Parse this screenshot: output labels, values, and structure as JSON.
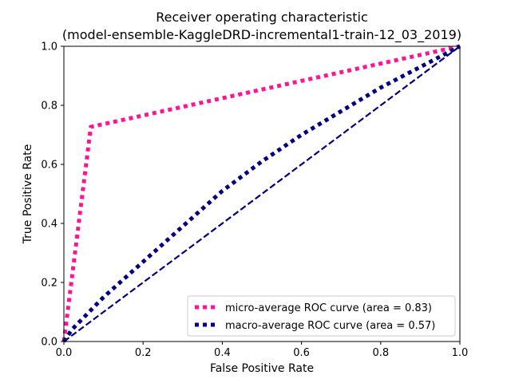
{
  "chart_data": {
    "type": "line",
    "title_line1": "Receiver operating characteristic",
    "title_line2": "(model-ensemble-KaggleDRD-incremental1-train-12_03_2019)",
    "xlabel": "False Positive Rate",
    "ylabel": "True Positive Rate",
    "xlim": [
      0.0,
      1.0
    ],
    "ylim": [
      0.0,
      1.0
    ],
    "xticks": [
      "0.0",
      "0.2",
      "0.4",
      "0.6",
      "0.8",
      "1.0"
    ],
    "yticks": [
      "0.0",
      "0.2",
      "0.4",
      "0.6",
      "0.8",
      "1.0"
    ],
    "grid": false,
    "legend_position": "lower-right",
    "series": [
      {
        "name": "micro-average ROC curve (area = 0.83)",
        "color": "#ff1493",
        "style": "dotted",
        "x": [
          0.0,
          0.068,
          1.0
        ],
        "y": [
          0.0,
          0.727,
          1.0
        ]
      },
      {
        "name": "macro-average ROC curve (area = 0.57)",
        "color": "#000080",
        "style": "dotted",
        "x": [
          0.0,
          0.02,
          0.1,
          0.2,
          0.3,
          0.4,
          0.5,
          0.6,
          0.7,
          0.8,
          0.9,
          1.0
        ],
        "y": [
          0.0,
          0.04,
          0.15,
          0.27,
          0.39,
          0.51,
          0.61,
          0.7,
          0.78,
          0.86,
          0.93,
          1.0
        ]
      },
      {
        "name": "",
        "color": "#000080",
        "style": "dashed",
        "x": [
          0.0,
          1.0
        ],
        "y": [
          0.0,
          1.0
        ]
      }
    ]
  }
}
